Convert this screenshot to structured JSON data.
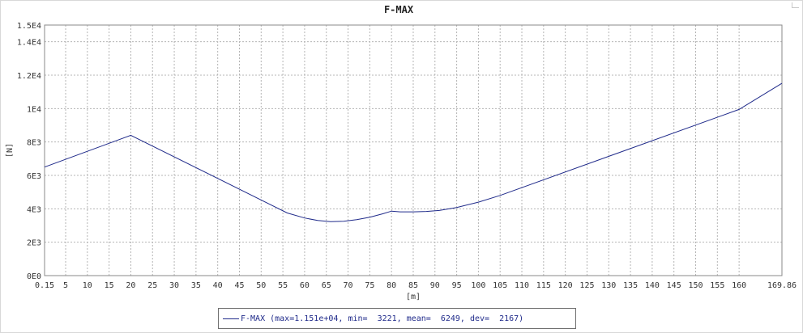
{
  "chart_data": {
    "type": "line",
    "title": "F-MAX",
    "xlabel": "[m]",
    "ylabel": "[N]",
    "xlim": [
      0.15,
      169.86
    ],
    "ylim": [
      0,
      15000
    ],
    "grid": true,
    "legend_position": "bottom-center",
    "x_tick_labels": [
      "0.15",
      "5",
      "10",
      "15",
      "20",
      "25",
      "30",
      "35",
      "40",
      "45",
      "50",
      "55",
      "60",
      "65",
      "70",
      "75",
      "80",
      "85",
      "90",
      "95",
      "100",
      "105",
      "110",
      "115",
      "120",
      "125",
      "130",
      "135",
      "140",
      "145",
      "150",
      "155",
      "160",
      "169.86"
    ],
    "x_tick_values": [
      0.15,
      5,
      10,
      15,
      20,
      25,
      30,
      35,
      40,
      45,
      50,
      55,
      60,
      65,
      70,
      75,
      80,
      85,
      90,
      95,
      100,
      105,
      110,
      115,
      120,
      125,
      130,
      135,
      140,
      145,
      150,
      155,
      160,
      169.86
    ],
    "y_tick_labels": [
      "0E0",
      "2E3",
      "4E3",
      "6E3",
      "8E3",
      "1E4",
      "1.2E4",
      "1.4E4",
      "1.5E4"
    ],
    "y_tick_values": [
      0,
      2000,
      4000,
      6000,
      8000,
      10000,
      12000,
      14000,
      15000
    ],
    "series": [
      {
        "name": "F-MAX",
        "legend_text": "F-MAX (max=1.151e+04, min=  3221, mean=  6249, dev=  2167)",
        "color": "#1f2a8a",
        "x": [
          0.15,
          20,
          56,
          60,
          63,
          66,
          69,
          72,
          75,
          78,
          80,
          82,
          85,
          88,
          91,
          95,
          100,
          105,
          160,
          169.86
        ],
        "y": [
          6500,
          8400,
          3750,
          3450,
          3300,
          3230,
          3250,
          3350,
          3500,
          3700,
          3860,
          3820,
          3820,
          3840,
          3900,
          4080,
          4400,
          4800,
          9950,
          11510
        ]
      }
    ]
  }
}
